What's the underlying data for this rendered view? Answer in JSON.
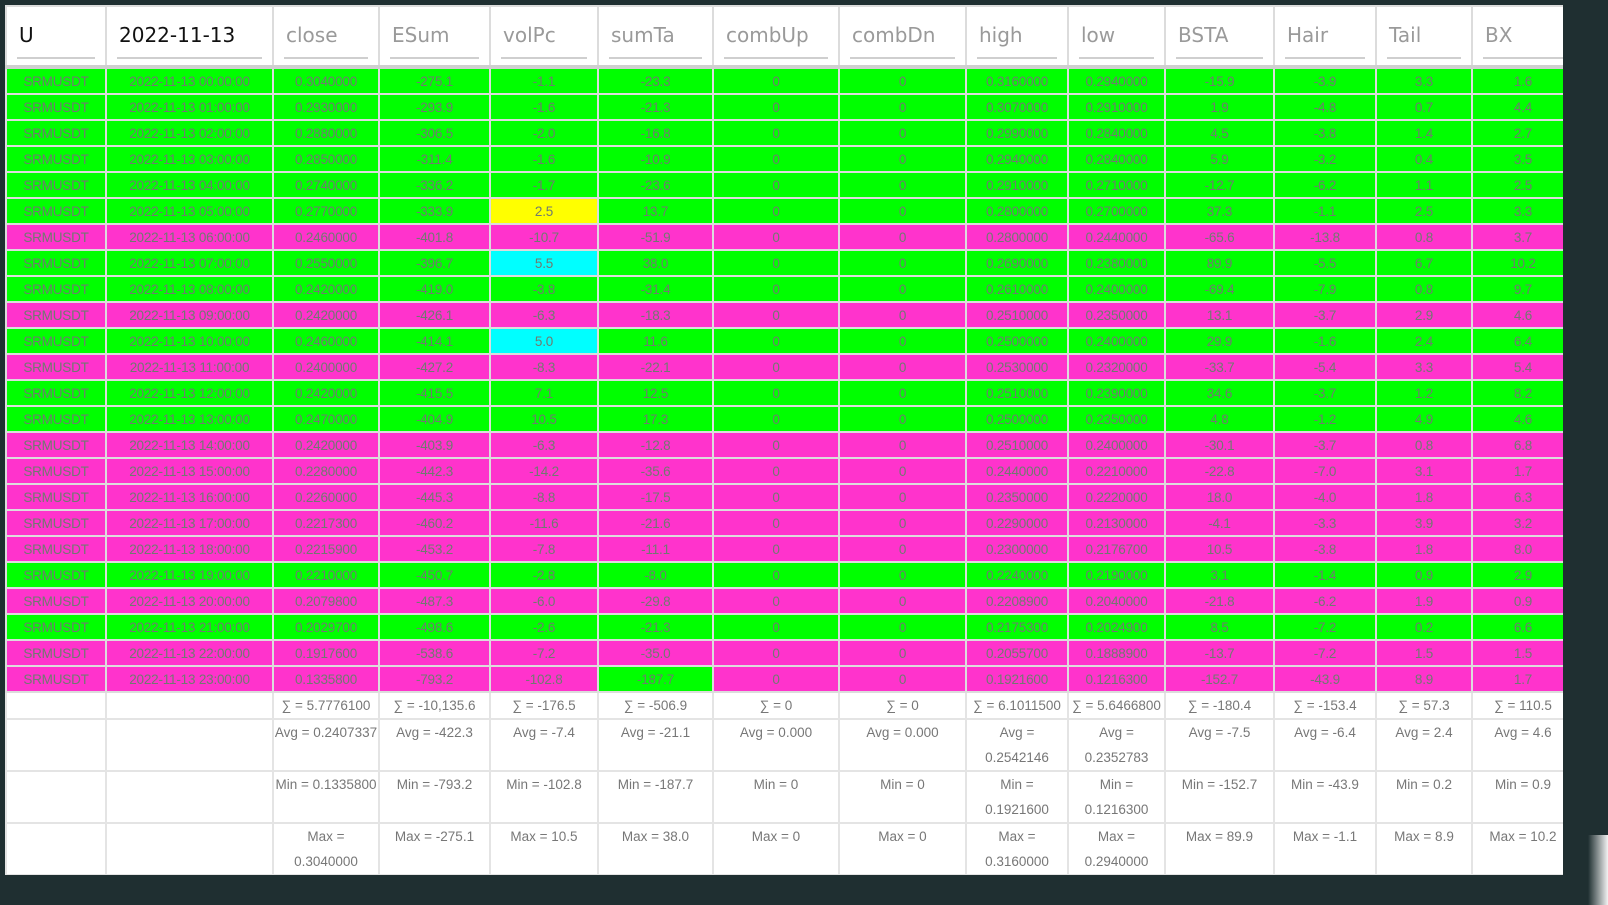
{
  "colors": {
    "green": "#00ff00",
    "pink": "#ff33cc",
    "yellow": "#ffff00",
    "cyan": "#00ffff"
  },
  "header": [
    "U",
    "2022-11-13",
    "close",
    "ESum",
    "volPc",
    "sumTa",
    "combUp",
    "combDn",
    "high",
    "low",
    "BSTA",
    "Hair",
    "Tail",
    "BX"
  ],
  "rows": [
    {
      "color": "green",
      "cells": [
        "SRMUSDT",
        "2022-11-13 00:00:00",
        "0.3040000",
        "-275.1",
        "-1.1",
        "-23.3",
        "0",
        "0",
        "0.3160000",
        "0.2940000",
        "-15.9",
        "-3.9",
        "3.3",
        "1.6"
      ]
    },
    {
      "color": "green",
      "cells": [
        "SRMUSDT",
        "2022-11-13 01:00:00",
        "0.2930000",
        "-293.9",
        "-1.6",
        "-21.3",
        "0",
        "0",
        "0.3070000",
        "0.2910000",
        "1.9",
        "-4.8",
        "0.7",
        "4.4"
      ]
    },
    {
      "color": "green",
      "cells": [
        "SRMUSDT",
        "2022-11-13 02:00:00",
        "0.2880000",
        "-306.5",
        "-2.0",
        "-16.8",
        "0",
        "0",
        "0.2990000",
        "0.2840000",
        "4.5",
        "-3.8",
        "1.4",
        "2.7"
      ]
    },
    {
      "color": "green",
      "cells": [
        "SRMUSDT",
        "2022-11-13 03:00:00",
        "0.2850000",
        "-311.4",
        "-1.6",
        "-10.9",
        "0",
        "0",
        "0.2940000",
        "0.2840000",
        "5.9",
        "-3.2",
        "0.4",
        "3.5"
      ]
    },
    {
      "color": "green",
      "cells": [
        "SRMUSDT",
        "2022-11-13 04:00:00",
        "0.2740000",
        "-336.2",
        "-1.7",
        "-23.6",
        "0",
        "0",
        "0.2910000",
        "0.2710000",
        "-12.7",
        "-6.2",
        "1.1",
        "2.5"
      ]
    },
    {
      "color": "green",
      "override": {
        "4": "yellow"
      },
      "cells": [
        "SRMUSDT",
        "2022-11-13 05:00:00",
        "0.2770000",
        "-333.9",
        "2.5",
        "13.7",
        "0",
        "0",
        "0.2800000",
        "0.2700000",
        "37.3",
        "-1.1",
        "2.5",
        "3.3"
      ]
    },
    {
      "color": "pink",
      "cells": [
        "SRMUSDT",
        "2022-11-13 06:00:00",
        "0.2460000",
        "-401.8",
        "-10.7",
        "-51.9",
        "0",
        "0",
        "0.2800000",
        "0.2440000",
        "-65.6",
        "-13.8",
        "0.8",
        "3.7"
      ]
    },
    {
      "color": "green",
      "override": {
        "4": "cyan"
      },
      "cells": [
        "SRMUSDT",
        "2022-11-13 07:00:00",
        "0.2550000",
        "-396.7",
        "5.5",
        "38.0",
        "0",
        "0",
        "0.2690000",
        "0.2380000",
        "89.9",
        "-5.5",
        "6.7",
        "10.2"
      ]
    },
    {
      "color": "green",
      "cells": [
        "SRMUSDT",
        "2022-11-13 08:00:00",
        "0.2420000",
        "-419.0",
        "-3.8",
        "-31.4",
        "0",
        "0",
        "0.2610000",
        "0.2400000",
        "-69.4",
        "-7.9",
        "0.8",
        "9.7"
      ]
    },
    {
      "color": "pink",
      "cells": [
        "SRMUSDT",
        "2022-11-13 09:00:00",
        "0.2420000",
        "-426.1",
        "-6.3",
        "-18.3",
        "0",
        "0",
        "0.2510000",
        "0.2350000",
        "13.1",
        "-3.7",
        "2.9",
        "4.6"
      ]
    },
    {
      "color": "green",
      "override": {
        "4": "cyan"
      },
      "cells": [
        "SRMUSDT",
        "2022-11-13 10:00:00",
        "0.2460000",
        "-414.1",
        "5.0",
        "11.6",
        "0",
        "0",
        "0.2500000",
        "0.2400000",
        "29.9",
        "-1.6",
        "2.4",
        "6.4"
      ]
    },
    {
      "color": "pink",
      "cells": [
        "SRMUSDT",
        "2022-11-13 11:00:00",
        "0.2400000",
        "-427.2",
        "-8.3",
        "-22.1",
        "0",
        "0",
        "0.2530000",
        "0.2320000",
        "-33.7",
        "-5.4",
        "3.3",
        "5.4"
      ]
    },
    {
      "color": "green",
      "cells": [
        "SRMUSDT",
        "2022-11-13 12:00:00",
        "0.2420000",
        "-415.5",
        "7.1",
        "12.5",
        "0",
        "0",
        "0.2510000",
        "0.2390000",
        "34.6",
        "-3.7",
        "1.2",
        "8.2"
      ]
    },
    {
      "color": "green",
      "cells": [
        "SRMUSDT",
        "2022-11-13 13:00:00",
        "0.2470000",
        "-404.9",
        "10.5",
        "17.3",
        "0",
        "0",
        "0.2500000",
        "0.2350000",
        "4.8",
        "-1.2",
        "4.9",
        "4.6"
      ]
    },
    {
      "color": "pink",
      "cells": [
        "SRMUSDT",
        "2022-11-13 14:00:00",
        "0.2420000",
        "-403.9",
        "-6.3",
        "-12.8",
        "0",
        "0",
        "0.2510000",
        "0.2400000",
        "-30.1",
        "-3.7",
        "0.8",
        "6.8"
      ]
    },
    {
      "color": "pink",
      "cells": [
        "SRMUSDT",
        "2022-11-13 15:00:00",
        "0.2280000",
        "-442.3",
        "-14.2",
        "-35.6",
        "0",
        "0",
        "0.2440000",
        "0.2210000",
        "-22.8",
        "-7.0",
        "3.1",
        "1.7"
      ]
    },
    {
      "color": "pink",
      "cells": [
        "SRMUSDT",
        "2022-11-13 16:00:00",
        "0.2260000",
        "-445.3",
        "-8.8",
        "-17.5",
        "0",
        "0",
        "0.2350000",
        "0.2220000",
        "18.0",
        "-4.0",
        "1.8",
        "6.3"
      ]
    },
    {
      "color": "pink",
      "cells": [
        "SRMUSDT",
        "2022-11-13 17:00:00",
        "0.2217300",
        "-460.2",
        "-11.6",
        "-21.6",
        "0",
        "0",
        "0.2290000",
        "0.2130000",
        "-4.1",
        "-3.3",
        "3.9",
        "3.2"
      ]
    },
    {
      "color": "pink",
      "cells": [
        "SRMUSDT",
        "2022-11-13 18:00:00",
        "0.2215900",
        "-453.2",
        "-7.8",
        "-11.1",
        "0",
        "0",
        "0.2300000",
        "0.2176700",
        "10.5",
        "-3.8",
        "1.8",
        "8.0"
      ]
    },
    {
      "color": "green",
      "cells": [
        "SRMUSDT",
        "2022-11-13 19:00:00",
        "0.2210000",
        "-450.7",
        "-2.8",
        "-8.0",
        "0",
        "0",
        "0.2240000",
        "0.2190000",
        "3.1",
        "-1.4",
        "0.9",
        "2.9"
      ]
    },
    {
      "color": "pink",
      "cells": [
        "SRMUSDT",
        "2022-11-13 20:00:00",
        "0.2079800",
        "-487.3",
        "-6.0",
        "-29.8",
        "0",
        "0",
        "0.2208900",
        "0.2040000",
        "-21.8",
        "-6.2",
        "1.9",
        "0.9"
      ]
    },
    {
      "color": "green",
      "cells": [
        "SRMUSDT",
        "2022-11-13 21:00:00",
        "0.2029700",
        "-498.6",
        "-2.6",
        "-21.3",
        "0",
        "0",
        "0.2175300",
        "0.2024900",
        "8.5",
        "-7.2",
        "0.2",
        "6.6"
      ]
    },
    {
      "color": "pink",
      "cells": [
        "SRMUSDT",
        "2022-11-13 22:00:00",
        "0.1917600",
        "-538.6",
        "-7.2",
        "-35.0",
        "0",
        "0",
        "0.2055700",
        "0.1888900",
        "-13.7",
        "-7.2",
        "1.5",
        "1.5"
      ]
    },
    {
      "color": "pink",
      "override": {
        "5": "green"
      },
      "cells": [
        "SRMUSDT",
        "2022-11-13 23:00:00",
        "0.1335800",
        "-793.2",
        "-102.8",
        "-187.7",
        "0",
        "0",
        "0.1921600",
        "0.1216300",
        "-152.7",
        "-43.9",
        "8.9",
        "1.7"
      ]
    }
  ],
  "footer": {
    "sum": [
      "∑ = 5.7776100",
      "∑ = -10,135.6",
      "∑ = -176.5",
      "∑ = -506.9",
      "∑ = 0",
      "∑ = 0",
      "∑ = 6.1011500",
      "∑ = 5.6466800",
      "∑ = -180.4",
      "∑ = -153.4",
      "∑ = 57.3",
      "∑ = 110.5"
    ],
    "avg": [
      "Avg = 0.2407337",
      "Avg = -422.3",
      "Avg = -7.4",
      "Avg = -21.1",
      "Avg = 0.000",
      "Avg = 0.000",
      "Avg = 0.2542146",
      "Avg = 0.2352783",
      "Avg = -7.5",
      "Avg = -6.4",
      "Avg = 2.4",
      "Avg = 4.6"
    ],
    "min": [
      "Min = 0.1335800",
      "Min = -793.2",
      "Min = -102.8",
      "Min = -187.7",
      "Min = 0",
      "Min = 0",
      "Min = 0.1921600",
      "Min = 0.1216300",
      "Min = -152.7",
      "Min = -43.9",
      "Min = 0.2",
      "Min = 0.9"
    ],
    "max": [
      "Max = 0.3040000",
      "Max = -275.1",
      "Max = 10.5",
      "Max = 38.0",
      "Max = 0",
      "Max = 0",
      "Max = 0.3160000",
      "Max = 0.2940000",
      "Max = 89.9",
      "Max = -1.1",
      "Max = 8.9",
      "Max = 10.2"
    ]
  }
}
